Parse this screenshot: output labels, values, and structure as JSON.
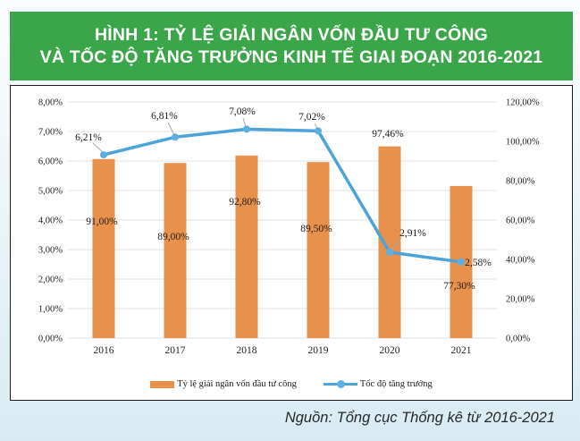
{
  "header": {
    "title_line1": "HÌNH 1: TỶ LỆ GIẢI NGÂN VỐN ĐẦU TƯ CÔNG",
    "title_line2": "VÀ TỐC ĐỘ TĂNG TRƯỞNG KINH TẾ GIAI ĐOẠN 2016-2021"
  },
  "source": "Nguồn: Tổng cục Thống kê từ 2016-2021",
  "colors": {
    "header_green": "#3ba549",
    "bar_orange": "#e8914d",
    "line_blue": "#4ba3d9",
    "marker_blue": "#5db0e3",
    "gridline": "#e2e2e2",
    "leader_gray": "#a8a8a8"
  },
  "chart_data": {
    "type": "combo",
    "categories": [
      "2016",
      "2017",
      "2018",
      "2019",
      "2020",
      "2021"
    ],
    "series": [
      {
        "name": "Tỷ lệ giải ngân vốn đầu tư công",
        "type": "bar",
        "axis": "right",
        "values": [
          91.0,
          89.0,
          92.8,
          89.5,
          97.46,
          77.3
        ],
        "labels": [
          "91,00%",
          "89,00%",
          "92,80%",
          "89,50%",
          "97,46%",
          "77,30%"
        ]
      },
      {
        "name": "Tốc độ tăng trưởng",
        "type": "line",
        "axis": "left",
        "values": [
          6.21,
          6.81,
          7.08,
          7.02,
          2.91,
          2.58
        ],
        "labels": [
          "6,21%",
          "6,81%",
          "7,08%",
          "7,02%",
          "2,91%",
          "2,58%"
        ]
      }
    ],
    "left_axis": {
      "min": 0,
      "max": 8,
      "step": 1,
      "tick_labels": [
        "0,00%",
        "1,00%",
        "2,00%",
        "3,00%",
        "4,00%",
        "5,00%",
        "6,00%",
        "7,00%",
        "8,00%"
      ]
    },
    "right_axis": {
      "min": 0,
      "max": 120,
      "step": 20,
      "tick_labels": [
        "0,00%",
        "20,00%",
        "40,00%",
        "60,00%",
        "80,00%",
        "100,00%",
        "120,00%"
      ]
    },
    "grid": true,
    "legend_position": "bottom"
  }
}
